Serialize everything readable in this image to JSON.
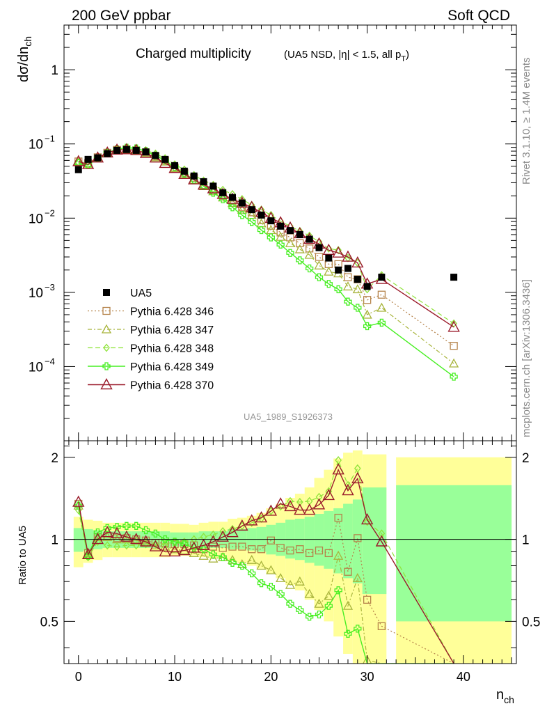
{
  "header": {
    "left": "200 GeV ppbar",
    "right": "Soft QCD"
  },
  "title": {
    "main": "Charged multiplicity",
    "sub": "(UA5 NSD, |η| < 1.5, all p",
    "sub_sub": "T",
    "sub_end": ")"
  },
  "side_labels": {
    "rivet": "Rivet 3.1.10, ≥ 1.4M events",
    "mcplots": "mcplots.cern.ch [arXiv:1306.3436]"
  },
  "analysis_id": "UA5_1989_S1926373",
  "axes": {
    "top_ylabel": "dσ/dn",
    "top_ylabel_sub": "ch",
    "bottom_ylabel": "Ratio to UA5",
    "xlabel": "n",
    "xlabel_sub": "ch",
    "top_ticks": [
      {
        "label": "1",
        "value": 1
      },
      {
        "label": "10",
        "exp": "−1",
        "value": 0.1
      },
      {
        "label": "10",
        "exp": "−2",
        "value": 0.01
      },
      {
        "label": "10",
        "exp": "−3",
        "value": 0.001
      },
      {
        "label": "10",
        "exp": "−4",
        "value": 0.0001
      }
    ],
    "x_ticks": [
      {
        "label": "0",
        "value": 0
      },
      {
        "label": "10",
        "value": 10
      },
      {
        "label": "20",
        "value": 20
      },
      {
        "label": "30",
        "value": 30
      },
      {
        "label": "40",
        "value": 40
      }
    ],
    "ratio_ticks": [
      {
        "label": "0.5",
        "value": 0.5
      },
      {
        "label": "1",
        "value": 1
      },
      {
        "label": "2",
        "value": 2
      }
    ]
  },
  "legend": [
    {
      "label": "UA5"
    },
    {
      "label": "Pythia 6.428 346"
    },
    {
      "label": "Pythia 6.428 347"
    },
    {
      "label": "Pythia 6.428 348"
    },
    {
      "label": "Pythia 6.428 349"
    },
    {
      "label": "Pythia 6.428 370"
    }
  ],
  "colors": {
    "ua5": "#000000",
    "p346": "#b5834a",
    "p347": "#a8b43c",
    "p348": "#8fe33a",
    "p349": "#47ef22",
    "p370": "#9a1a2a",
    "band_inner": "#99ff99",
    "band_outer": "#ffff99"
  },
  "chart_data": {
    "type": "line",
    "x_range": [
      -1.5,
      45.5
    ],
    "top_y_range": [
      1e-05,
      4
    ],
    "top_y_scale": "log",
    "ratio_y_range": [
      0.35,
      2.3
    ],
    "ratio_y_scale": "log",
    "ua5": {
      "name": "UA5",
      "x": [
        0,
        1,
        2,
        3,
        4,
        5,
        6,
        7,
        8,
        9,
        10,
        11,
        12,
        13,
        14,
        15,
        16,
        17,
        18,
        19,
        20,
        21,
        22,
        23,
        24,
        25,
        26,
        27,
        28,
        29,
        30,
        31.5,
        39
      ],
      "y": [
        0.045,
        0.062,
        0.065,
        0.074,
        0.082,
        0.084,
        0.082,
        0.078,
        0.07,
        0.062,
        0.051,
        0.043,
        0.037,
        0.031,
        0.027,
        0.022,
        0.019,
        0.016,
        0.013,
        0.011,
        0.0092,
        0.0078,
        0.0068,
        0.006,
        0.0052,
        0.004,
        0.0029,
        0.002,
        0.0021,
        0.0015,
        0.0012,
        0.0016,
        0.0016
      ]
    },
    "series": [
      {
        "name": "Pythia 6.428 346",
        "x": [
          0,
          1,
          2,
          3,
          4,
          5,
          6,
          7,
          8,
          9,
          10,
          11,
          12,
          13,
          14,
          15,
          16,
          17,
          18,
          19,
          20,
          21,
          22,
          23,
          24,
          25,
          26,
          27,
          28,
          29,
          30,
          31.5,
          39
        ],
        "y": [
          0.058,
          0.055,
          0.066,
          0.076,
          0.083,
          0.085,
          0.082,
          0.077,
          0.068,
          0.06,
          0.048,
          0.041,
          0.035,
          0.028,
          0.024,
          0.02,
          0.017,
          0.014,
          0.012,
          0.0094,
          0.0079,
          0.0064,
          0.0055,
          0.0046,
          0.0039,
          0.003,
          0.0024,
          0.0024,
          0.0016,
          0.0015,
          0.00079,
          0.00093,
          0.00019
        ],
        "ratio": [
          1.35,
          0.89,
          1.02,
          1.03,
          1.01,
          1.01,
          1.0,
          0.99,
          0.97,
          0.97,
          0.96,
          0.96,
          0.95,
          0.92,
          0.94,
          0.93,
          0.94,
          0.94,
          0.92,
          0.92,
          0.99,
          0.93,
          0.91,
          0.92,
          0.89,
          0.91,
          0.89,
          1.2,
          0.76,
          1.01,
          0.6,
          0.48,
          0.3
        ]
      },
      {
        "name": "Pythia 6.428 347",
        "x": [
          0,
          1,
          2,
          3,
          4,
          5,
          6,
          7,
          8,
          9,
          10,
          11,
          12,
          13,
          14,
          15,
          16,
          17,
          18,
          19,
          20,
          21,
          22,
          23,
          24,
          25,
          26,
          27,
          28,
          29,
          30,
          31.5,
          39
        ],
        "y": [
          0.057,
          0.054,
          0.066,
          0.075,
          0.082,
          0.084,
          0.081,
          0.076,
          0.066,
          0.058,
          0.047,
          0.039,
          0.033,
          0.027,
          0.023,
          0.019,
          0.016,
          0.013,
          0.011,
          0.0085,
          0.0069,
          0.0056,
          0.0046,
          0.0038,
          0.0032,
          0.0023,
          0.0019,
          0.0018,
          0.0012,
          0.0011,
          0.0005,
          0.00062,
          0.00011
        ],
        "ratio": [
          1.33,
          0.88,
          1.02,
          1.02,
          1.0,
          1.0,
          0.99,
          0.97,
          0.95,
          0.94,
          0.92,
          0.91,
          0.89,
          0.87,
          0.85,
          0.86,
          0.84,
          0.81,
          0.84,
          0.8,
          0.77,
          0.72,
          0.68,
          0.7,
          0.63,
          0.58,
          0.62,
          0.87,
          0.57,
          0.72,
          0.36,
          0.3,
          0.2
        ]
      },
      {
        "name": "Pythia 6.428 348",
        "x": [
          0,
          1,
          2,
          3,
          4,
          5,
          6,
          7,
          8,
          9,
          10,
          11,
          12,
          13,
          14,
          15,
          16,
          17,
          18,
          19,
          20,
          21,
          22,
          23,
          24,
          25,
          26,
          27,
          28,
          29,
          30,
          31.5,
          39
        ],
        "y": [
          0.056,
          0.052,
          0.064,
          0.075,
          0.084,
          0.089,
          0.088,
          0.082,
          0.074,
          0.064,
          0.053,
          0.045,
          0.038,
          0.032,
          0.028,
          0.024,
          0.021,
          0.018,
          0.015,
          0.013,
          0.011,
          0.0091,
          0.0078,
          0.0067,
          0.0058,
          0.0048,
          0.0039,
          0.0037,
          0.0029,
          0.0025,
          0.0011,
          0.0017,
          0.00038
        ],
        "ratio": [
          1.28,
          0.86,
          0.98,
          0.95,
          0.94,
          0.95,
          0.95,
          0.96,
          0.96,
          0.96,
          0.98,
          0.98,
          1.0,
          1.02,
          1.04,
          1.07,
          1.09,
          1.12,
          1.15,
          1.19,
          1.27,
          1.32,
          1.38,
          1.37,
          1.38,
          1.43,
          1.5,
          1.95,
          1.58,
          1.82,
          1.16,
          1.05,
          0.24
        ]
      },
      {
        "name": "Pythia 6.428 349",
        "x": [
          0,
          1,
          2,
          3,
          4,
          5,
          6,
          7,
          8,
          9,
          10,
          11,
          12,
          13,
          14,
          15,
          16,
          17,
          18,
          19,
          20,
          21,
          22,
          23,
          24,
          25,
          26,
          27,
          28,
          29,
          30,
          31.5,
          39
        ],
        "y": [
          0.055,
          0.052,
          0.064,
          0.076,
          0.085,
          0.089,
          0.087,
          0.08,
          0.07,
          0.06,
          0.049,
          0.04,
          0.033,
          0.027,
          0.022,
          0.018,
          0.014,
          0.011,
          0.0089,
          0.0069,
          0.0055,
          0.0044,
          0.0034,
          0.0027,
          0.0021,
          0.0016,
          0.0013,
          0.0011,
          0.00075,
          0.00062,
          0.00035,
          0.00039,
          7.3e-05
        ],
        "ratio": [
          1.33,
          0.87,
          1.06,
          1.1,
          1.11,
          1.12,
          1.12,
          1.08,
          1.05,
          1.0,
          0.98,
          0.96,
          0.93,
          0.92,
          0.88,
          0.86,
          0.82,
          0.8,
          0.75,
          0.69,
          0.67,
          0.63,
          0.58,
          0.55,
          0.52,
          0.53,
          0.57,
          0.65,
          0.45,
          0.47,
          0.3,
          0.25,
          0.2
        ]
      },
      {
        "name": "Pythia 6.428 370",
        "x": [
          0,
          1,
          2,
          3,
          4,
          5,
          6,
          7,
          8,
          9,
          10,
          11,
          12,
          13,
          14,
          15,
          16,
          17,
          18,
          19,
          20,
          21,
          22,
          23,
          24,
          25,
          26,
          27,
          28,
          29,
          30,
          31.5,
          39
        ],
        "y": [
          0.058,
          0.053,
          0.065,
          0.076,
          0.083,
          0.084,
          0.082,
          0.075,
          0.065,
          0.055,
          0.047,
          0.039,
          0.033,
          0.028,
          0.025,
          0.021,
          0.018,
          0.016,
          0.014,
          0.012,
          0.01,
          0.0087,
          0.0074,
          0.0062,
          0.0052,
          0.0045,
          0.0037,
          0.0034,
          0.003,
          0.0025,
          0.0013,
          0.0015,
          0.00034
        ],
        "ratio": [
          1.37,
          0.88,
          1.0,
          1.06,
          1.05,
          1.02,
          1.0,
          0.98,
          0.94,
          0.9,
          0.9,
          0.91,
          0.93,
          0.95,
          0.98,
          1.02,
          1.06,
          1.12,
          1.17,
          1.2,
          1.27,
          1.35,
          1.32,
          1.28,
          1.28,
          1.34,
          1.45,
          1.8,
          1.51,
          1.67,
          1.18,
          0.98,
          0.2
        ]
      }
    ],
    "bands": {
      "x_lo": [
        -0.5,
        0.5,
        1.5,
        2.5,
        3.5,
        4.5,
        5.5,
        6.5,
        7.5,
        8.5,
        9.5,
        10.5,
        11.5,
        12.5,
        13.5,
        14.5,
        15.5,
        16.5,
        17.5,
        18.5,
        19.5,
        20.5,
        21.5,
        22.5,
        23.5,
        24.5,
        25.5,
        26.5,
        27.5,
        28.5,
        29.5,
        33
      ],
      "x_hi": [
        0.5,
        1.5,
        2.5,
        3.5,
        4.5,
        5.5,
        6.5,
        7.5,
        8.5,
        9.5,
        10.5,
        11.5,
        12.5,
        13.5,
        14.5,
        15.5,
        16.5,
        17.5,
        18.5,
        19.5,
        20.5,
        21.5,
        22.5,
        23.5,
        24.5,
        25.5,
        26.5,
        27.5,
        28.5,
        29.5,
        32,
        45
      ],
      "inner": [
        [
          0.9,
          1.1
        ],
        [
          0.91,
          1.09
        ],
        [
          0.92,
          1.08
        ],
        [
          0.93,
          1.07
        ],
        [
          0.93,
          1.07
        ],
        [
          0.93,
          1.07
        ],
        [
          0.93,
          1.07
        ],
        [
          0.93,
          1.07
        ],
        [
          0.93,
          1.07
        ],
        [
          0.93,
          1.07
        ],
        [
          0.94,
          1.06
        ],
        [
          0.94,
          1.06
        ],
        [
          0.94,
          1.06
        ],
        [
          0.93,
          1.07
        ],
        [
          0.93,
          1.07
        ],
        [
          0.93,
          1.07
        ],
        [
          0.92,
          1.09
        ],
        [
          0.92,
          1.09
        ],
        [
          0.91,
          1.1
        ],
        [
          0.9,
          1.11
        ],
        [
          0.88,
          1.13
        ],
        [
          0.87,
          1.15
        ],
        [
          0.85,
          1.18
        ],
        [
          0.84,
          1.19
        ],
        [
          0.82,
          1.21
        ],
        [
          0.8,
          1.24
        ],
        [
          0.78,
          1.27
        ],
        [
          0.75,
          1.3
        ],
        [
          0.72,
          1.35
        ],
        [
          0.69,
          1.4
        ],
        [
          0.63,
          1.55
        ],
        [
          0.5,
          1.58
        ]
      ],
      "outer": [
        [
          0.79,
          1.21
        ],
        [
          0.82,
          1.18
        ],
        [
          0.84,
          1.17
        ],
        [
          0.86,
          1.15
        ],
        [
          0.86,
          1.15
        ],
        [
          0.86,
          1.15
        ],
        [
          0.86,
          1.15
        ],
        [
          0.86,
          1.15
        ],
        [
          0.86,
          1.15
        ],
        [
          0.86,
          1.15
        ],
        [
          0.87,
          1.14
        ],
        [
          0.87,
          1.14
        ],
        [
          0.87,
          1.13
        ],
        [
          0.86,
          1.15
        ],
        [
          0.85,
          1.16
        ],
        [
          0.85,
          1.16
        ],
        [
          0.83,
          1.19
        ],
        [
          0.82,
          1.2
        ],
        [
          0.8,
          1.22
        ],
        [
          0.78,
          1.25
        ],
        [
          0.75,
          1.3
        ],
        [
          0.72,
          1.35
        ],
        [
          0.68,
          1.42
        ],
        [
          0.65,
          1.47
        ],
        [
          0.6,
          1.55
        ],
        [
          0.55,
          1.68
        ],
        [
          0.5,
          1.8
        ],
        [
          0.44,
          1.98
        ],
        [
          0.38,
          2.08
        ],
        [
          0.35,
          2.12
        ],
        [
          0.35,
          2.05
        ],
        [
          0.35,
          2.0
        ]
      ]
    }
  }
}
